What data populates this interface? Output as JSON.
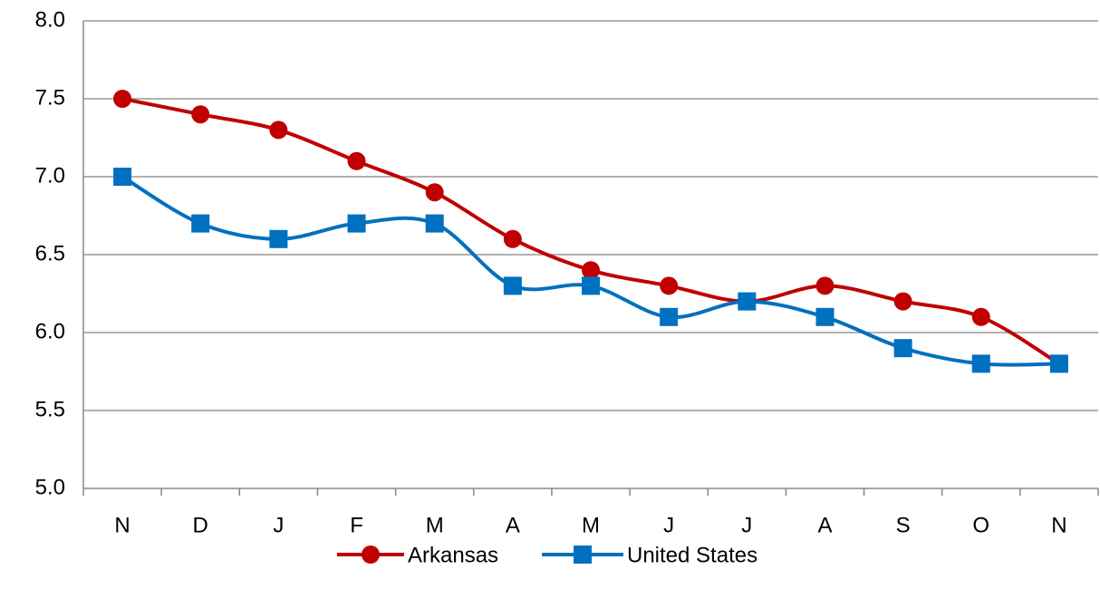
{
  "chart_data": {
    "type": "line",
    "categories": [
      "N",
      "D",
      "J",
      "F",
      "M",
      "A",
      "M",
      "J",
      "J",
      "A",
      "S",
      "O",
      "N"
    ],
    "series": [
      {
        "name": "Arkansas",
        "color": "#c00000",
        "marker": "circle",
        "values": [
          7.5,
          7.4,
          7.3,
          7.1,
          6.9,
          6.6,
          6.4,
          6.3,
          6.2,
          6.3,
          6.2,
          6.1,
          5.8
        ]
      },
      {
        "name": "United States",
        "color": "#0070c0",
        "marker": "square",
        "values": [
          7.0,
          6.7,
          6.6,
          6.7,
          6.7,
          6.3,
          6.3,
          6.1,
          6.2,
          6.1,
          5.9,
          5.8,
          5.8
        ]
      }
    ],
    "ylim": [
      5,
      8
    ],
    "yticks": [
      {
        "value": 5,
        "label": "5.0"
      },
      {
        "value": 5.5,
        "label": "5.5"
      },
      {
        "value": 6,
        "label": "6.0"
      },
      {
        "value": 6.5,
        "label": "6.5"
      },
      {
        "value": 7,
        "label": "7.0"
      },
      {
        "value": 7.5,
        "label": "7.5"
      },
      {
        "value": 8,
        "label": "8.0"
      }
    ],
    "grid": true,
    "smooth": true,
    "legend": "bottom"
  }
}
